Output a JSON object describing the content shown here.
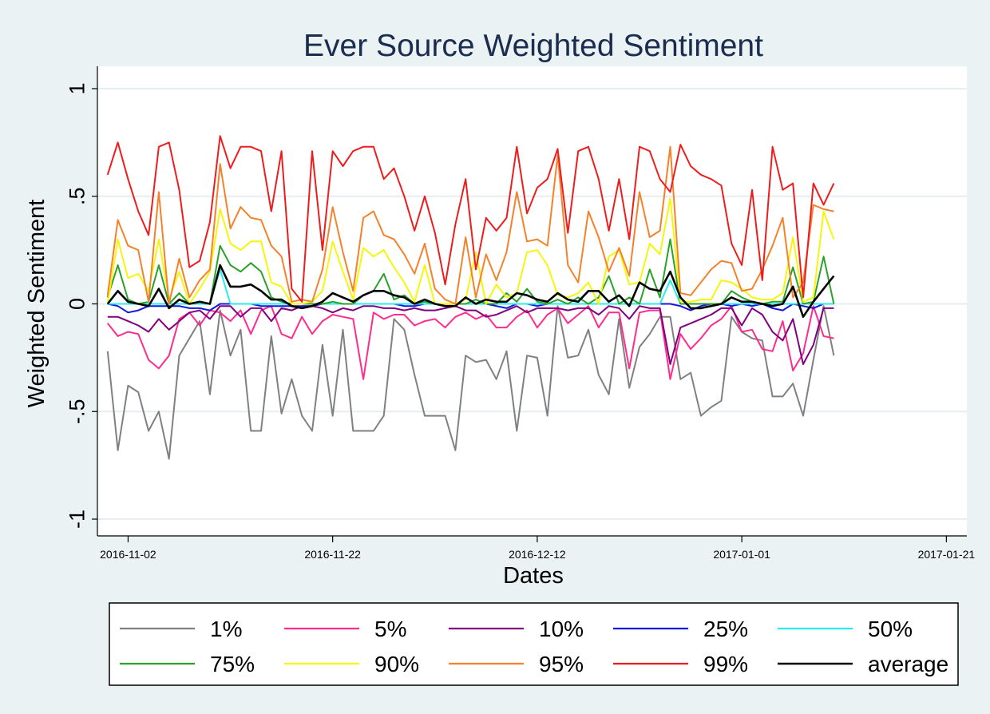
{
  "chart_data": {
    "type": "line",
    "title": "Ever Source Weighted Sentiment",
    "xlabel": "Dates",
    "ylabel": "Weighted Sentiment",
    "ylim": [
      -1,
      1
    ],
    "yticks": [
      -1,
      -0.5,
      0,
      0.5,
      1
    ],
    "ytick_labels": [
      "-1",
      "-.5",
      "0",
      ".5",
      "1"
    ],
    "xlim": [
      "2016-10-30",
      "2017-01-23"
    ],
    "xticks": [
      "2016-11-02",
      "2016-11-22",
      "2016-12-12",
      "2017-01-01",
      "2017-01-21"
    ],
    "xtick_labels": [
      "2016-11-02",
      "2016-11-22",
      "2016-12-12",
      "2017-01-01",
      "2017-01-21"
    ],
    "x_start": "2016-10-31",
    "grid": true,
    "legend_position": "bottom",
    "series": [
      {
        "name": "1%",
        "color": "#808080",
        "values": [
          -0.22,
          -0.68,
          -0.38,
          -0.41,
          -0.59,
          -0.5,
          -0.72,
          -0.24,
          -0.16,
          -0.08,
          -0.42,
          -0.03,
          -0.24,
          -0.12,
          -0.59,
          -0.59,
          -0.15,
          -0.51,
          -0.35,
          -0.52,
          -0.59,
          -0.19,
          -0.52,
          -0.12,
          -0.59,
          -0.59,
          -0.59,
          -0.52,
          -0.07,
          -0.12,
          -0.33,
          -0.52,
          -0.52,
          -0.52,
          -0.68,
          -0.24,
          -0.27,
          -0.26,
          -0.35,
          -0.22,
          -0.59,
          -0.24,
          -0.25,
          -0.52,
          -0.01,
          -0.25,
          -0.24,
          -0.12,
          -0.33,
          -0.42,
          -0.07,
          -0.39,
          -0.2,
          -0.14,
          -0.06,
          -0.06,
          -0.35,
          -0.32,
          -0.52,
          -0.48,
          -0.45,
          -0.06,
          -0.13,
          -0.16,
          -0.17,
          -0.43,
          -0.43,
          -0.37,
          -0.52,
          -0.26,
          -0.01,
          -0.24
        ]
      },
      {
        "name": "5%",
        "color": "#ff2c8d",
        "values": [
          -0.09,
          -0.15,
          -0.13,
          -0.14,
          -0.26,
          -0.3,
          -0.24,
          -0.07,
          -0.04,
          -0.1,
          -0.03,
          -0.04,
          -0.08,
          -0.03,
          -0.14,
          -0.03,
          -0.01,
          -0.14,
          -0.16,
          -0.06,
          -0.14,
          -0.08,
          -0.05,
          -0.06,
          -0.07,
          -0.35,
          -0.04,
          -0.07,
          -0.05,
          -0.05,
          -0.1,
          -0.08,
          -0.07,
          -0.11,
          -0.06,
          -0.04,
          -0.07,
          -0.05,
          -0.11,
          -0.11,
          -0.06,
          -0.03,
          -0.11,
          -0.05,
          -0.02,
          -0.09,
          -0.05,
          -0.01,
          -0.11,
          -0.04,
          -0.04,
          -0.3,
          -0.04,
          -0.03,
          -0.03,
          -0.35,
          -0.14,
          -0.21,
          -0.16,
          -0.1,
          -0.07,
          -0.01,
          -0.13,
          -0.12,
          -0.21,
          -0.22,
          -0.08,
          -0.31,
          -0.23,
          -0.01,
          -0.15,
          -0.16
        ]
      },
      {
        "name": "10%",
        "color": "#800080",
        "values": [
          -0.06,
          -0.06,
          -0.08,
          -0.1,
          -0.13,
          -0.07,
          -0.12,
          -0.08,
          -0.04,
          -0.03,
          -0.07,
          -0.01,
          -0.01,
          -0.06,
          -0.02,
          -0.02,
          -0.08,
          -0.02,
          -0.03,
          -0.01,
          -0.01,
          -0.02,
          -0.04,
          -0.02,
          -0.03,
          -0.01,
          -0.01,
          -0.02,
          -0.02,
          -0.03,
          -0.02,
          -0.03,
          -0.03,
          -0.02,
          -0.01,
          -0.03,
          -0.03,
          -0.06,
          -0.05,
          -0.03,
          -0.01,
          -0.04,
          -0.02,
          -0.02,
          -0.02,
          -0.03,
          -0.02,
          -0.02,
          -0.05,
          -0.01,
          -0.02,
          -0.07,
          -0.01,
          -0.02,
          -0.02,
          -0.28,
          -0.11,
          -0.09,
          -0.07,
          -0.05,
          -0.02,
          -0.02,
          -0.1,
          -0.02,
          -0.05,
          -0.13,
          -0.17,
          -0.07,
          -0.28,
          -0.19,
          -0.02,
          -0.02
        ]
      },
      {
        "name": "25%",
        "color": "#1515e0",
        "values": [
          0.0,
          -0.01,
          -0.04,
          -0.03,
          -0.01,
          -0.01,
          -0.01,
          -0.01,
          -0.02,
          -0.02,
          -0.03,
          0.0,
          0.0,
          0.0,
          0.0,
          -0.01,
          -0.01,
          -0.01,
          -0.01,
          -0.01,
          -0.01,
          0.0,
          0.0,
          0.0,
          0.0,
          0.0,
          0.0,
          0.0,
          0.0,
          -0.01,
          -0.01,
          0.0,
          0.0,
          0.0,
          0.0,
          0.0,
          0.0,
          0.0,
          -0.01,
          -0.02,
          0.0,
          0.0,
          -0.01,
          0.0,
          0.0,
          0.0,
          0.0,
          0.0,
          0.0,
          0.0,
          0.0,
          0.0,
          0.0,
          0.0,
          0.0,
          0.0,
          -0.01,
          -0.03,
          -0.01,
          0.0,
          0.0,
          -0.01,
          0.0,
          -0.01,
          0.0,
          -0.02,
          -0.03,
          0.0,
          -0.01,
          -0.02,
          0.0,
          0.0
        ]
      },
      {
        "name": "50%",
        "color": "#28ecec",
        "values": [
          0.0,
          0.0,
          0.0,
          0.0,
          0.0,
          0.0,
          0.0,
          0.0,
          0.0,
          0.0,
          0.0,
          0.16,
          0.0,
          0.0,
          0.0,
          0.0,
          0.0,
          0.0,
          0.0,
          0.0,
          0.0,
          0.0,
          0.0,
          0.0,
          0.0,
          0.0,
          0.0,
          0.0,
          0.0,
          0.0,
          0.0,
          0.0,
          0.0,
          0.0,
          0.0,
          0.0,
          0.0,
          0.0,
          0.0,
          0.0,
          0.0,
          0.0,
          0.0,
          0.0,
          0.0,
          0.0,
          0.0,
          0.0,
          0.0,
          0.0,
          0.0,
          0.0,
          0.0,
          0.0,
          0.0,
          0.11,
          0.0,
          0.0,
          0.0,
          0.0,
          0.0,
          0.0,
          0.0,
          0.0,
          0.0,
          0.0,
          0.0,
          0.0,
          0.0,
          0.0,
          0.0,
          0.0
        ]
      },
      {
        "name": "75%",
        "color": "#2aa22a",
        "values": [
          0.03,
          0.18,
          0.02,
          0.0,
          0.01,
          0.18,
          0.0,
          0.05,
          0.0,
          0.01,
          0.0,
          0.27,
          0.18,
          0.15,
          0.19,
          0.15,
          0.03,
          0.01,
          0.0,
          0.0,
          0.0,
          0.0,
          0.01,
          0.0,
          0.0,
          0.04,
          0.06,
          0.14,
          0.02,
          0.04,
          0.0,
          0.01,
          0.0,
          0.0,
          0.0,
          0.0,
          0.02,
          0.0,
          0.0,
          0.05,
          0.01,
          0.07,
          0.01,
          0.0,
          0.02,
          0.0,
          0.03,
          0.0,
          0.03,
          0.13,
          0.0,
          0.03,
          0.0,
          0.16,
          0.03,
          0.3,
          0.0,
          0.0,
          0.0,
          0.0,
          0.0,
          0.06,
          0.03,
          0.01,
          0.0,
          0.01,
          0.01,
          0.17,
          0.0,
          0.01,
          0.22,
          0.0
        ]
      },
      {
        "name": "90%",
        "color": "#f6f60a",
        "values": [
          0.0,
          0.3,
          0.12,
          0.14,
          0.06,
          0.3,
          0.02,
          0.15,
          0.0,
          0.07,
          0.15,
          0.44,
          0.28,
          0.25,
          0.29,
          0.29,
          0.1,
          0.08,
          0.0,
          0.0,
          0.01,
          0.06,
          0.29,
          0.15,
          0.02,
          0.26,
          0.22,
          0.25,
          0.17,
          0.1,
          0.01,
          0.18,
          0.0,
          0.0,
          0.0,
          0.02,
          0.24,
          0.0,
          0.09,
          0.03,
          0.05,
          0.24,
          0.25,
          0.18,
          0.04,
          0.03,
          0.05,
          0.1,
          0.0,
          0.22,
          0.25,
          0.09,
          0.1,
          0.28,
          0.23,
          0.49,
          0.01,
          0.01,
          0.02,
          0.02,
          0.11,
          0.1,
          0.07,
          0.03,
          0.02,
          0.02,
          0.05,
          0.31,
          0.01,
          0.03,
          0.43,
          0.3
        ]
      },
      {
        "name": "95%",
        "color": "#f5822a",
        "values": [
          0.04,
          0.39,
          0.27,
          0.25,
          0.01,
          0.52,
          0.0,
          0.21,
          0.03,
          0.11,
          0.16,
          0.65,
          0.35,
          0.45,
          0.4,
          0.39,
          0.27,
          0.22,
          0.01,
          0.02,
          0.01,
          0.16,
          0.45,
          0.24,
          0.06,
          0.4,
          0.43,
          0.32,
          0.3,
          0.23,
          0.14,
          0.28,
          0.07,
          0.02,
          0.0,
          0.31,
          0.03,
          0.23,
          0.11,
          0.24,
          0.52,
          0.29,
          0.3,
          0.27,
          0.69,
          0.18,
          0.1,
          0.43,
          0.31,
          0.15,
          0.26,
          0.13,
          0.52,
          0.31,
          0.34,
          0.73,
          0.05,
          0.04,
          0.1,
          0.16,
          0.2,
          0.19,
          0.06,
          0.07,
          0.16,
          0.27,
          0.4,
          0.03,
          0.1,
          0.46,
          0.44,
          0.43
        ]
      },
      {
        "name": "99%",
        "color": "#ee1c1c",
        "values": [
          0.6,
          0.75,
          0.58,
          0.43,
          0.32,
          0.73,
          0.75,
          0.53,
          0.17,
          0.2,
          0.38,
          0.78,
          0.63,
          0.73,
          0.73,
          0.71,
          0.43,
          0.71,
          0.07,
          0.01,
          0.71,
          0.25,
          0.71,
          0.64,
          0.71,
          0.73,
          0.73,
          0.58,
          0.63,
          0.5,
          0.34,
          0.5,
          0.33,
          0.09,
          0.37,
          0.58,
          0.16,
          0.4,
          0.34,
          0.4,
          0.73,
          0.42,
          0.54,
          0.58,
          0.72,
          0.33,
          0.71,
          0.73,
          0.58,
          0.34,
          0.58,
          0.3,
          0.73,
          0.71,
          0.58,
          0.52,
          0.74,
          0.64,
          0.6,
          0.58,
          0.55,
          0.28,
          0.18,
          0.53,
          0.11,
          0.73,
          0.53,
          0.56,
          0.03,
          0.56,
          0.46,
          0.56
        ]
      },
      {
        "name": "average",
        "color": "#000000",
        "values": [
          0.0,
          0.06,
          0.01,
          0.0,
          -0.01,
          0.07,
          -0.02,
          0.02,
          0.0,
          0.01,
          0.0,
          0.18,
          0.08,
          0.08,
          0.09,
          0.06,
          0.02,
          0.02,
          -0.01,
          -0.02,
          -0.01,
          0.01,
          0.05,
          0.03,
          0.01,
          0.04,
          0.06,
          0.06,
          0.04,
          0.03,
          0.0,
          0.02,
          0.0,
          -0.01,
          -0.01,
          0.03,
          0.0,
          0.02,
          0.01,
          0.01,
          0.05,
          0.04,
          0.02,
          0.01,
          0.05,
          0.02,
          0.01,
          0.06,
          0.06,
          0.01,
          0.04,
          -0.01,
          0.1,
          0.07,
          0.06,
          0.15,
          0.03,
          -0.02,
          -0.02,
          -0.01,
          0.0,
          0.03,
          0.01,
          0.01,
          0.0,
          -0.01,
          0.0,
          0.08,
          -0.06,
          0.01,
          0.07,
          0.13
        ]
      }
    ]
  }
}
